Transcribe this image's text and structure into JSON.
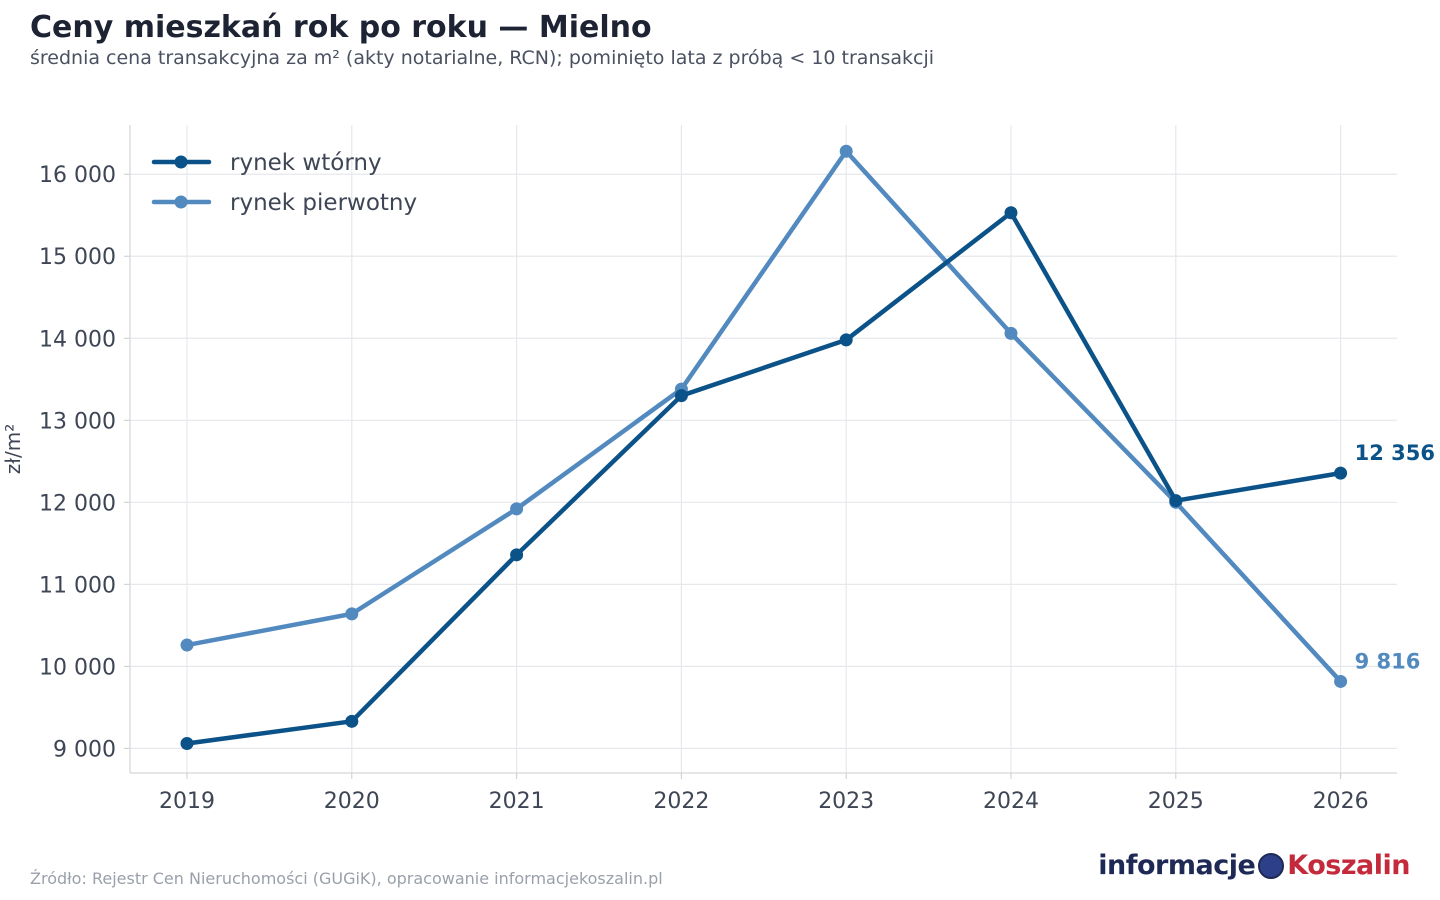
{
  "title": "Ceny mieszkań rok po roku — Mielno",
  "subtitle": "średnia cena transakcyjna za m² (akty notarialne, RCN); pominięto lata z próbą < 10 transakcji",
  "source": "Źródło: Rejestr Cen Nieruchomości (GUGiK), opracowanie informacjekoszalin.pl",
  "logo": {
    "part1": "informacje",
    "part2": "Koszalin"
  },
  "chart_data": {
    "type": "line",
    "title": "Ceny mieszkań rok po roku — Mielno",
    "xlabel": "",
    "ylabel": "zł/m²",
    "x": [
      "2019",
      "2020",
      "2021",
      "2022",
      "2023",
      "2024",
      "2025",
      "2026"
    ],
    "ylim": [
      8700,
      16600
    ],
    "yticks": [
      9000,
      10000,
      11000,
      12000,
      13000,
      14000,
      15000,
      16000
    ],
    "ytick_labels": [
      "9 000",
      "10 000",
      "11 000",
      "12 000",
      "13 000",
      "14 000",
      "15 000",
      "16 000"
    ],
    "grid": true,
    "legend_position": "top-left",
    "series": [
      {
        "name": "rynek wtórny",
        "color": "#0b5288",
        "values": [
          9060,
          9330,
          11360,
          13300,
          13980,
          15530,
          12020,
          12356
        ],
        "end_label": "12 356"
      },
      {
        "name": "rynek pierwotny",
        "color": "#528ac0",
        "values": [
          10260,
          10640,
          11920,
          13380,
          16280,
          14060,
          12000,
          9816
        ],
        "end_label": "9 816"
      }
    ]
  }
}
